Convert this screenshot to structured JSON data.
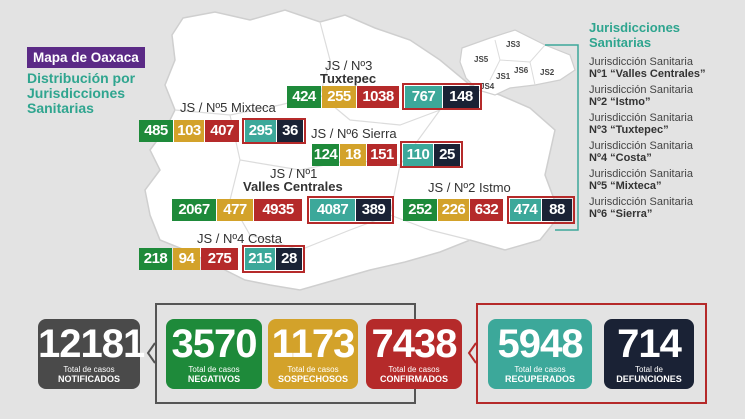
{
  "header": {
    "title": "Mapa de Oaxaca",
    "subtitle": "Distribución por Jurisdicciones Sanitarias"
  },
  "jurisdictions": {
    "mixteca": {
      "label": "JS / Nº5 Mixteca",
      "green": "485",
      "yellow": "103",
      "red": "407",
      "teal": "295",
      "dark": "36"
    },
    "tuxtepec": {
      "label_line1": "JS / Nº3",
      "label_line2": "Tuxtepec",
      "green": "424",
      "yellow": "255",
      "red": "1038",
      "teal": "767",
      "dark": "148"
    },
    "sierra": {
      "label": "JS / Nº6 Sierra",
      "green": "124",
      "yellow": "18",
      "red": "151",
      "teal": "110",
      "dark": "25"
    },
    "valles": {
      "label_line1": "JS / Nº1",
      "label_line2": "Valles Centrales",
      "green": "2067",
      "yellow": "477",
      "red": "4935",
      "teal": "4087",
      "dark": "389"
    },
    "istmo": {
      "label": "JS / Nº2 Istmo",
      "green": "252",
      "yellow": "226",
      "red": "632",
      "teal": "474",
      "dark": "88"
    },
    "costa": {
      "label": "JS / Nº4 Costa",
      "green": "218",
      "yellow": "94",
      "red": "275",
      "teal": "215",
      "dark": "28"
    }
  },
  "mini_map_labels": [
    "JS3",
    "JS5",
    "JS6",
    "JS1",
    "JS2",
    "JS4"
  ],
  "legend": {
    "title": "Jurisdicciones Sanitarias",
    "items": [
      {
        "prefix": "Jurisdicción Sanitaria",
        "name": "Nº1 “Valles Centrales”"
      },
      {
        "prefix": "Jurisdicción Sanitaria",
        "name": "Nº2 “Istmo”"
      },
      {
        "prefix": "Jurisdicción Sanitaria",
        "name": "Nº3 “Tuxtepec”"
      },
      {
        "prefix": "Jurisdicción Sanitaria",
        "name": "Nº4 “Costa”"
      },
      {
        "prefix": "Jurisdicción Sanitaria",
        "name": "Nº5 “Mixteca”"
      },
      {
        "prefix": "Jurisdicción Sanitaria",
        "name": "Nº6 “Sierra”"
      }
    ]
  },
  "totals": {
    "notificados": {
      "value": "12181",
      "caption": "Total de casos",
      "label": "NOTIFICADOS"
    },
    "negativos": {
      "value": "3570",
      "caption": "Total de casos",
      "label": "NEGATIVOS"
    },
    "sospechosos": {
      "value": "1173",
      "caption": "Total de casos",
      "label": "SOSPECHOSOS"
    },
    "confirmados": {
      "value": "7438",
      "caption": "Total de casos",
      "label": "CONFIRMADOS"
    },
    "recuperados": {
      "value": "5948",
      "caption": "Total de casos",
      "label": "RECUPERADOS"
    },
    "defunciones": {
      "value": "714",
      "caption": "Total de",
      "label": "DEFUNCIONES"
    }
  },
  "colors": {
    "green": "#1e8a3a",
    "yellow": "#d3a22a",
    "red": "#b52a2a",
    "teal": "#3ca89a",
    "dark": "#1a2235",
    "purple": "#5b2a86",
    "grey": "#4a4a4a"
  }
}
